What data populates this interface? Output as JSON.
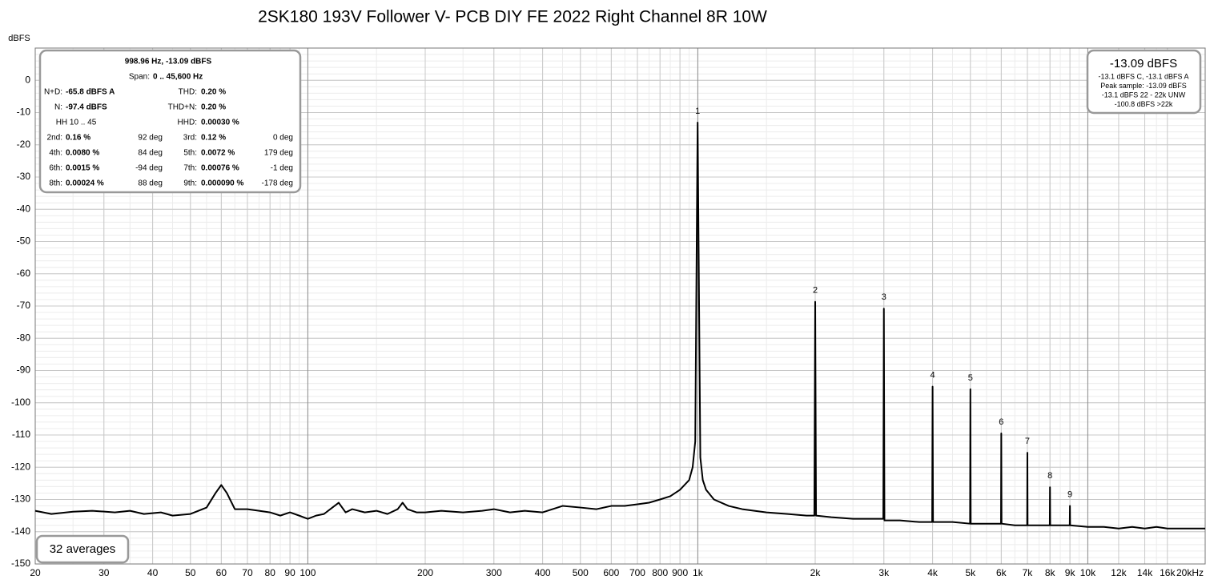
{
  "chart_data": {
    "type": "line",
    "title": "2SK180 193V Follower V- PCB DIY FE 2022 Right Channel 8R 10W",
    "y_label": "dBFS",
    "xscale": "log",
    "grid": true,
    "xlim": [
      20,
      20000
    ],
    "ylim": [
      -150,
      10
    ],
    "yticks": [
      0,
      -10,
      -20,
      -30,
      -40,
      -50,
      -60,
      -70,
      -80,
      -90,
      -100,
      -110,
      -120,
      -130,
      -140,
      -150
    ],
    "xticks": [
      20,
      30,
      40,
      50,
      60,
      70,
      80,
      90,
      100,
      200,
      300,
      400,
      500,
      600,
      700,
      800,
      900,
      {
        "value": 1000,
        "label": "1k"
      },
      {
        "value": 2000,
        "label": "2k"
      },
      {
        "value": 3000,
        "label": "3k"
      },
      {
        "value": 4000,
        "label": "4k"
      },
      {
        "value": 5000,
        "label": "5k"
      },
      {
        "value": 6000,
        "label": "6k"
      },
      {
        "value": 7000,
        "label": "7k"
      },
      {
        "value": 8000,
        "label": "8k"
      },
      {
        "value": 9000,
        "label": "9k"
      },
      {
        "value": 10000,
        "label": "10k"
      },
      {
        "value": 12000,
        "label": "12k"
      },
      {
        "value": 14000,
        "label": "14k"
      },
      {
        "value": 16000,
        "label": "16k"
      },
      {
        "value": 20000,
        "label": "20kHz"
      }
    ],
    "series": [
      {
        "name": "Right Channel",
        "color": "#000000",
        "x": [
          20,
          22,
          25,
          28,
          32,
          35,
          38,
          42,
          45,
          50,
          55,
          58,
          60,
          62,
          65,
          70,
          75,
          80,
          85,
          90,
          95,
          100,
          105,
          110,
          120,
          125,
          130,
          140,
          150,
          160,
          170,
          175,
          180,
          190,
          200,
          220,
          250,
          280,
          300,
          330,
          360,
          400,
          450,
          500,
          550,
          600,
          650,
          700,
          750,
          800,
          850,
          900,
          950,
          970,
          985,
          995,
          999,
          1003,
          1015,
          1030,
          1050,
          1100,
          1200,
          1300,
          1500,
          1700,
          1900,
          1990,
          2000,
          2010,
          2200,
          2500,
          2800,
          2990,
          3000,
          3010,
          3300,
          3700,
          3990,
          4000,
          4010,
          4500,
          4990,
          5000,
          5010,
          5500,
          5990,
          6000,
          6010,
          6500,
          6990,
          7000,
          7010,
          7500,
          7990,
          8000,
          8010,
          8500,
          8990,
          9000,
          9010,
          10000,
          11000,
          12000,
          13000,
          14000,
          15000,
          16000,
          18000,
          20000
        ],
        "values": [
          -133.5,
          -134.5,
          -133.8,
          -133.5,
          -134,
          -133.5,
          -134.5,
          -134,
          -135,
          -134.5,
          -132.5,
          -128,
          -125.5,
          -128,
          -133,
          -133,
          -133.5,
          -134,
          -135,
          -134,
          -135,
          -136,
          -135,
          -134.5,
          -131,
          -134,
          -133,
          -134,
          -133.5,
          -134.5,
          -133,
          -131,
          -133,
          -134,
          -134,
          -133.5,
          -134,
          -133.5,
          -133,
          -134,
          -133.5,
          -134,
          -132,
          -132.5,
          -133,
          -132,
          -132,
          -131.5,
          -131,
          -130,
          -129,
          -127,
          -124,
          -120,
          -112,
          -40,
          -13.09,
          -40,
          -117,
          -124,
          -127,
          -130,
          -132,
          -133,
          -134,
          -134.5,
          -135,
          -135,
          -68.7,
          -135,
          -135.5,
          -136,
          -136,
          -136,
          -70.8,
          -136.5,
          -136.5,
          -137,
          -137,
          -95,
          -137,
          -137,
          -137.5,
          -95.8,
          -137.5,
          -137.5,
          -137.5,
          -109.5,
          -137.5,
          -138,
          -138,
          -115.5,
          -138,
          -138,
          -138,
          -126.2,
          -138,
          -138,
          -138,
          -132,
          -138,
          -138.5,
          -138.5,
          -139,
          -138.5,
          -139,
          -138.5,
          -139,
          -139,
          -139
        ]
      }
    ],
    "annotations": [
      {
        "text": "1",
        "x": 999,
        "y": -13.09
      },
      {
        "text": "2",
        "x": 2000,
        "y": -68.7
      },
      {
        "text": "3",
        "x": 3000,
        "y": -70.8
      },
      {
        "text": "4",
        "x": 4000,
        "y": -95
      },
      {
        "text": "5",
        "x": 5000,
        "y": -95.8
      },
      {
        "text": "6",
        "x": 6000,
        "y": -109.5
      },
      {
        "text": "7",
        "x": 7000,
        "y": -115.5
      },
      {
        "text": "8",
        "x": 8000,
        "y": -126.2
      },
      {
        "text": "9",
        "x": 9000,
        "y": -132
      }
    ]
  },
  "info_panel": {
    "header": "998.96 Hz, -13.09 dBFS",
    "span_label": "Span:",
    "span_value": "0 .. 45,600 Hz",
    "rows": [
      {
        "label": "N+D:",
        "value": "-65.8 dBFS A",
        "label2": "THD:",
        "value2": "0.20 %"
      },
      {
        "label": "N:",
        "value": "-97.4 dBFS",
        "label2": "THD+N:",
        "value2": "0.20 %"
      },
      {
        "note": "HH 10 .. 45",
        "label2": "HHD:",
        "value2": "0.00030 %"
      },
      {
        "label": "2nd:",
        "value": "0.16 %",
        "phase": "92 deg",
        "label2": "3rd:",
        "value2": "0.12 %",
        "phase2": "0 deg"
      },
      {
        "label": "4th:",
        "value": "0.0080 %",
        "phase": "84 deg",
        "label2": "5th:",
        "value2": "0.0072 %",
        "phase2": "179 deg"
      },
      {
        "label": "6th:",
        "value": "0.0015 %",
        "phase": "-94 deg",
        "label2": "7th:",
        "value2": "0.00076 %",
        "phase2": "-1 deg"
      },
      {
        "label": "8th:",
        "value": "0.00024 %",
        "phase": "88 deg",
        "label2": "9th:",
        "value2": "0.000090 %",
        "phase2": "-178 deg"
      }
    ]
  },
  "level_panel": {
    "title": "-13.09 dBFS",
    "lines": [
      "-13.1 dBFS C, -13.1 dBFS A",
      "Peak sample: -13.09 dBFS",
      "-13.1 dBFS 22 - 22k UNW",
      "-100.8 dBFS >22k"
    ]
  },
  "averages": "32 averages"
}
